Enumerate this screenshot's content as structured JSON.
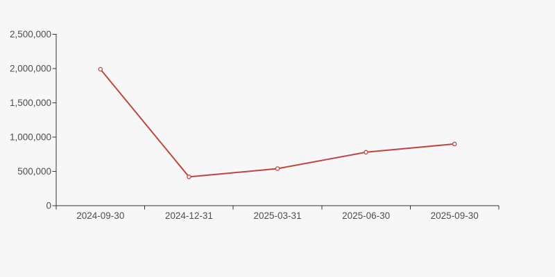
{
  "chart_data": {
    "type": "line",
    "title": "",
    "xlabel": "",
    "ylabel": "",
    "categories": [
      "2024-09-30",
      "2024-12-31",
      "2025-03-31",
      "2025-06-30",
      "2025-09-30"
    ],
    "values": [
      1990000,
      420000,
      540000,
      780000,
      900000
    ],
    "series": [
      {
        "name": "series-1",
        "values": [
          1990000,
          420000,
          540000,
          780000,
          900000
        ]
      }
    ],
    "ylim": [
      0,
      2500000
    ],
    "y_ticks": [
      0,
      500000,
      1000000,
      1500000,
      2000000,
      2500000
    ],
    "y_tick_labels": [
      "0",
      "500,000",
      "1,000,000",
      "1,500,000",
      "2,000,000",
      "2,500,000"
    ],
    "grid": false,
    "legend_position": "none",
    "marker": "hollow-circle",
    "colors": {
      "line": "#bf4541",
      "marker_fill": "#fbfbfb",
      "axis": "#333333",
      "label": "#4d4d4d",
      "background": "#f7f7f7"
    }
  }
}
